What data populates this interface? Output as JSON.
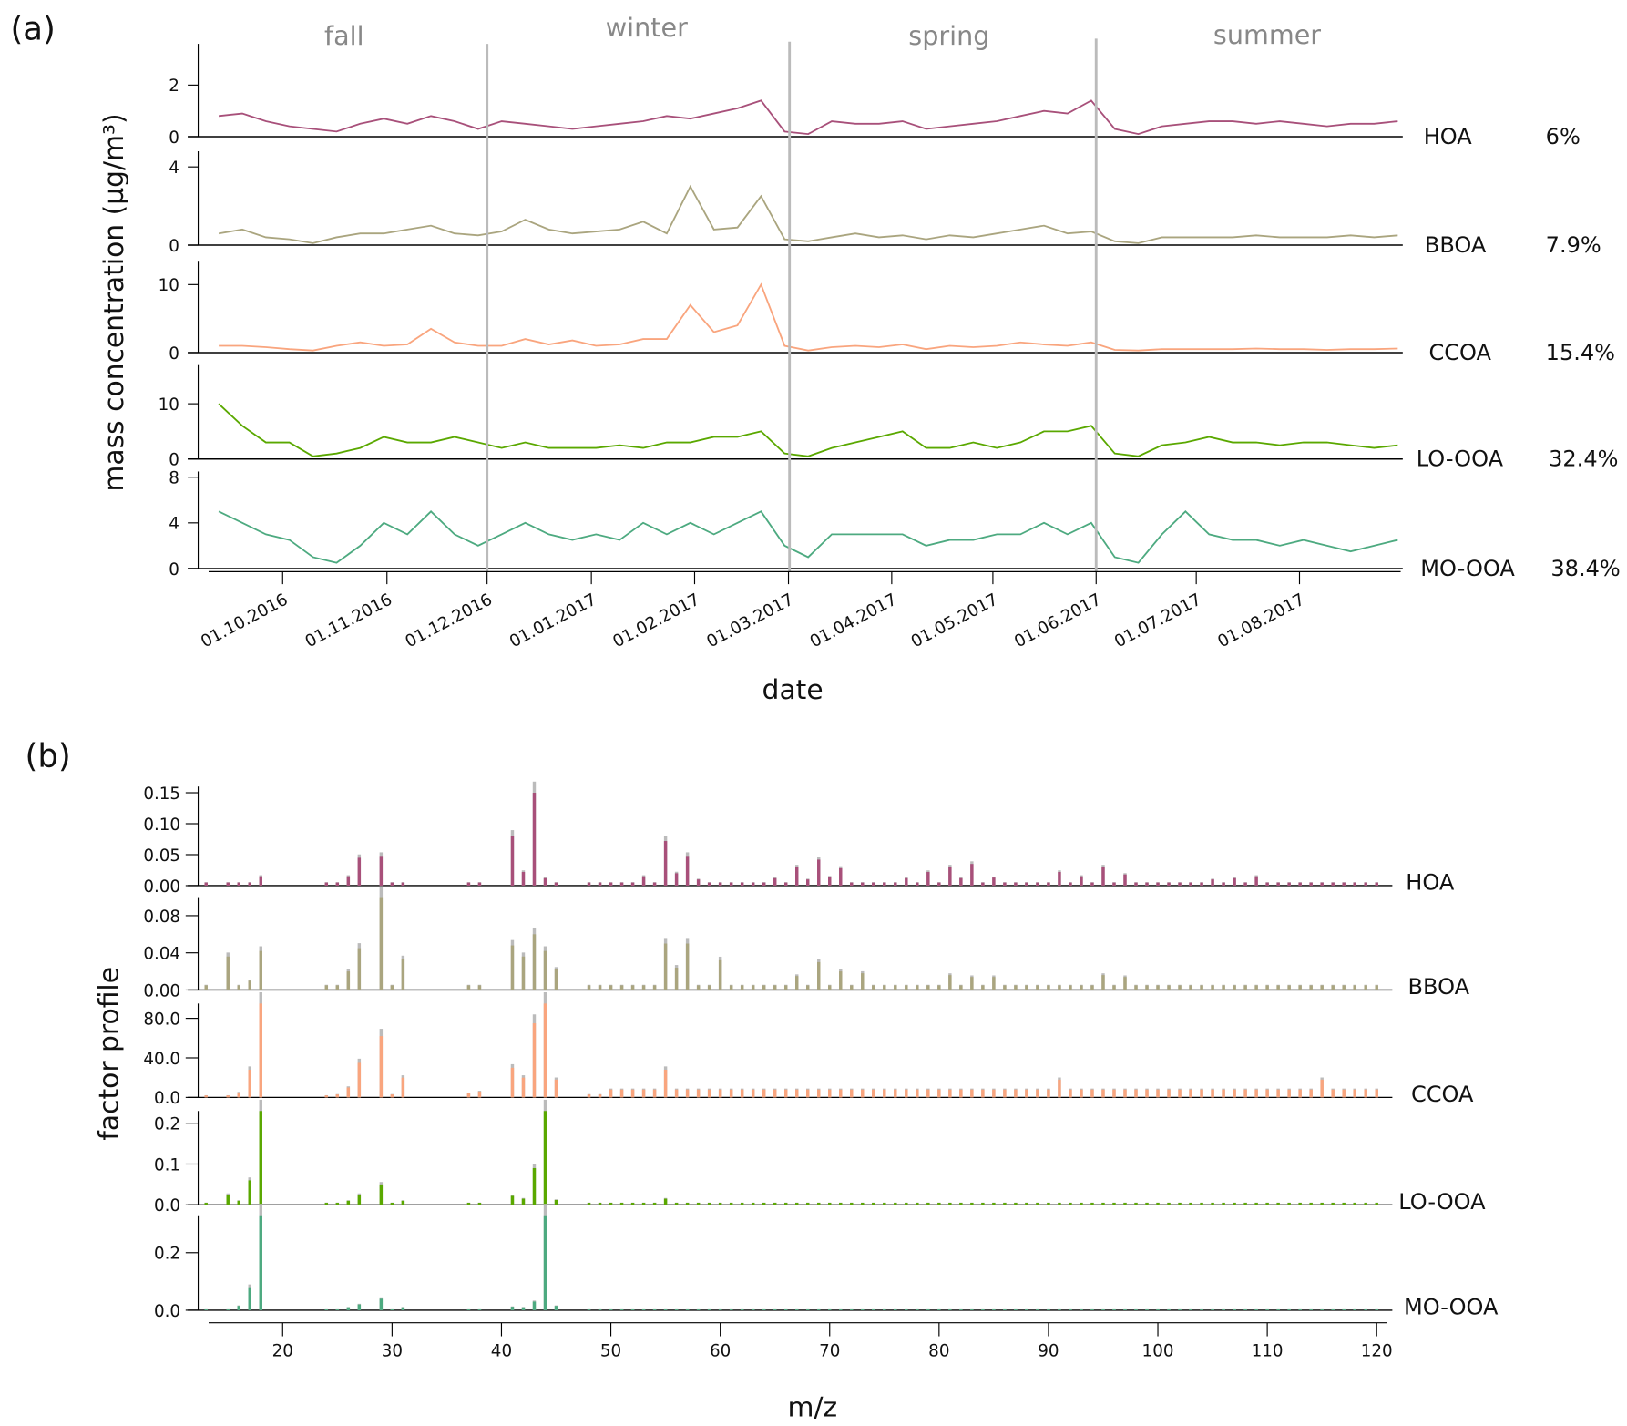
{
  "chart_data": [
    {
      "panel_label": "(a)",
      "type": "line",
      "xlabel": "date",
      "ylabel": "mass concentration (µg/m³)",
      "seasons": [
        "fall",
        "winter",
        "spring",
        "summer"
      ],
      "x_ticks": [
        "01.10.2016",
        "01.11.2016",
        "01.12.2016",
        "01.01.2017",
        "01.02.2017",
        "01.03.2017",
        "01.04.2017",
        "01.05.2017",
        "01.06.2017",
        "01.07.2017",
        "01.08.2017"
      ],
      "x_start": "2016-09-12",
      "x_step_days": 7,
      "series": [
        {
          "name": "HOA",
          "share": "6%",
          "color": "#a8507a",
          "ylim": [
            0,
            3.6
          ],
          "yticks": [
            0,
            2
          ],
          "values": [
            0.8,
            0.9,
            0.6,
            0.4,
            0.3,
            0.2,
            0.5,
            0.7,
            0.5,
            0.8,
            0.6,
            0.3,
            0.6,
            0.5,
            0.4,
            0.3,
            0.4,
            0.5,
            0.6,
            0.8,
            0.7,
            0.9,
            1.1,
            1.4,
            0.2,
            0.1,
            0.6,
            0.5,
            0.5,
            0.6,
            0.3,
            0.4,
            0.5,
            0.6,
            0.8,
            1.0,
            0.9,
            1.4,
            0.3,
            0.1,
            0.4,
            0.5,
            0.6,
            0.6,
            0.5,
            0.6,
            0.5,
            0.4,
            0.5,
            0.5,
            0.6
          ]
        },
        {
          "name": "BBOA",
          "share": "7.9%",
          "color": "#aaa57f",
          "ylim": [
            0,
            4.8
          ],
          "yticks": [
            0,
            4
          ],
          "values": [
            0.6,
            0.8,
            0.4,
            0.3,
            0.1,
            0.4,
            0.6,
            0.6,
            0.8,
            1.0,
            0.6,
            0.5,
            0.7,
            1.3,
            0.8,
            0.6,
            0.7,
            0.8,
            1.2,
            0.6,
            3.0,
            0.8,
            0.9,
            2.5,
            0.3,
            0.2,
            0.4,
            0.6,
            0.4,
            0.5,
            0.3,
            0.5,
            0.4,
            0.6,
            0.8,
            1.0,
            0.6,
            0.7,
            0.2,
            0.1,
            0.4,
            0.4,
            0.4,
            0.4,
            0.5,
            0.4,
            0.4,
            0.4,
            0.5,
            0.4,
            0.5
          ]
        },
        {
          "name": "CCOA",
          "share": "15.4%",
          "color": "#f9a57e",
          "ylim": [
            0,
            13.5
          ],
          "yticks": [
            0,
            10
          ],
          "values": [
            1,
            1,
            0.8,
            0.5,
            0.3,
            1,
            1.5,
            1,
            1.2,
            3.5,
            1.5,
            1,
            1,
            2,
            1.2,
            1.8,
            1,
            1.2,
            2,
            2,
            7,
            3,
            4,
            10,
            1,
            0.3,
            0.8,
            1,
            0.8,
            1.2,
            0.5,
            1,
            0.8,
            1,
            1.5,
            1.2,
            1,
            1.5,
            0.4,
            0.3,
            0.5,
            0.5,
            0.5,
            0.5,
            0.6,
            0.5,
            0.5,
            0.4,
            0.5,
            0.5,
            0.6
          ]
        },
        {
          "name": "LO-OOA",
          "share": "32.4%",
          "color": "#5aa800",
          "ylim": [
            0,
            17
          ],
          "yticks": [
            0,
            10
          ],
          "values": [
            10,
            6,
            3,
            3,
            0.5,
            1,
            2,
            4,
            3,
            3,
            4,
            3,
            2,
            3,
            2,
            2,
            2,
            2.5,
            2,
            3,
            3,
            4,
            4,
            5,
            1,
            0.5,
            2,
            3,
            4,
            5,
            2,
            2,
            3,
            2,
            3,
            5,
            5,
            6,
            1,
            0.5,
            2.5,
            3,
            4,
            3,
            3,
            2.5,
            3,
            3,
            2.5,
            2,
            2.5
          ]
        },
        {
          "name": "MO-OOA",
          "share": "38.4%",
          "color": "#4daa80",
          "ylim": [
            0,
            8.5
          ],
          "yticks": [
            0,
            4,
            8
          ],
          "values": [
            5,
            4,
            3,
            2.5,
            1,
            0.5,
            2,
            4,
            3,
            5,
            3,
            2,
            3,
            4,
            3,
            2.5,
            3,
            2.5,
            4,
            3,
            4,
            3,
            4,
            5,
            2,
            1,
            3,
            3,
            3,
            3,
            2,
            2.5,
            2.5,
            3,
            3,
            4,
            3,
            4,
            1,
            0.5,
            3,
            5,
            3,
            2.5,
            2.5,
            2,
            2.5,
            2,
            1.5,
            2,
            2.5
          ]
        }
      ]
    },
    {
      "panel_label": "(b)",
      "type": "bar",
      "xlabel": "m/z",
      "ylabel": "factor profile",
      "x_ticks": [
        20,
        30,
        40,
        50,
        60,
        70,
        80,
        90,
        100,
        110,
        120
      ],
      "mz": [
        13,
        15,
        16,
        17,
        18,
        24,
        25,
        26,
        27,
        29,
        30,
        31,
        37,
        38,
        41,
        42,
        43,
        44,
        45,
        48,
        49,
        50,
        51,
        52,
        53,
        54,
        55,
        56,
        57,
        58,
        59,
        60,
        61,
        62,
        63,
        64,
        65,
        66,
        67,
        68,
        69,
        70,
        71,
        72,
        73,
        74,
        75,
        76,
        77,
        78,
        79,
        80,
        81,
        82,
        83,
        84,
        85,
        86,
        87,
        88,
        89,
        90,
        91,
        92,
        93,
        94,
        95,
        96,
        97,
        98,
        99,
        100,
        101,
        102,
        103,
        104,
        105,
        106,
        107,
        108,
        109,
        110,
        111,
        112,
        113,
        114,
        115,
        116,
        117,
        118,
        119,
        120
      ],
      "series": [
        {
          "name": "HOA",
          "color": "#a8507a",
          "ylim": [
            0,
            0.16
          ],
          "yticks": [
            "0.00",
            "0.05",
            "0.10",
            "0.15"
          ],
          "default": 0.005,
          "peaks": {
            "18": 0.015,
            "26": 0.015,
            "27": 0.045,
            "29": 0.048,
            "41": 0.08,
            "42": 0.022,
            "43": 0.15,
            "44": 0.012,
            "53": 0.015,
            "55": 0.072,
            "56": 0.02,
            "57": 0.048,
            "58": 0.01,
            "65": 0.012,
            "67": 0.03,
            "68": 0.01,
            "69": 0.042,
            "70": 0.014,
            "71": 0.028,
            "77": 0.012,
            "79": 0.022,
            "81": 0.03,
            "82": 0.012,
            "83": 0.035,
            "85": 0.013,
            "91": 0.022,
            "93": 0.015,
            "95": 0.03,
            "97": 0.018,
            "105": 0.01,
            "107": 0.012,
            "109": 0.015
          }
        },
        {
          "name": "BBOA",
          "color": "#aaa57f",
          "ylim": [
            0,
            0.1
          ],
          "yticks": [
            "0.00",
            "0.04",
            "0.08"
          ],
          "default": 0.005,
          "peaks": {
            "15": 0.036,
            "18": 0.042,
            "17": 0.01,
            "26": 0.02,
            "27": 0.045,
            "29": 0.1,
            "31": 0.033,
            "41": 0.048,
            "42": 0.036,
            "43": 0.06,
            "44": 0.042,
            "45": 0.022,
            "55": 0.05,
            "56": 0.024,
            "57": 0.05,
            "60": 0.032,
            "67": 0.015,
            "69": 0.03,
            "71": 0.02,
            "73": 0.018,
            "81": 0.016,
            "83": 0.014,
            "85": 0.014,
            "95": 0.016,
            "97": 0.014
          }
        },
        {
          "name": "CCOA",
          "color": "#f9a57e",
          "ylim": [
            0,
            95
          ],
          "yticks": [
            "0.0",
            "40.0",
            "80.0"
          ],
          "default": 8,
          "peaks": {
            "13": 2,
            "15": 2,
            "16": 5,
            "17": 28,
            "18": 95,
            "24": 2,
            "25": 3,
            "26": 10,
            "27": 35,
            "29": 62,
            "30": 3,
            "31": 20,
            "37": 4,
            "38": 6,
            "41": 30,
            "42": 20,
            "43": 75,
            "44": 95,
            "45": 18,
            "48": 3,
            "49": 3,
            "55": 28,
            "91": 18,
            "115": 18
          }
        },
        {
          "name": "LO-OOA",
          "color": "#5aa800",
          "ylim": [
            0,
            0.23
          ],
          "yticks": [
            "0.0",
            "0.1",
            "0.2"
          ],
          "default": 0.005,
          "peaks": {
            "15": 0.025,
            "16": 0.01,
            "17": 0.06,
            "18": 0.23,
            "26": 0.01,
            "27": 0.025,
            "29": 0.05,
            "31": 0.01,
            "41": 0.022,
            "42": 0.015,
            "43": 0.09,
            "44": 0.23,
            "45": 0.012,
            "55": 0.015
          }
        },
        {
          "name": "MO-OOA",
          "color": "#4daa80",
          "ylim": [
            0,
            0.33
          ],
          "yticks": [
            "0.0",
            "0.2"
          ],
          "default": 0.003,
          "peaks": {
            "16": 0.015,
            "17": 0.08,
            "18": 0.33,
            "26": 0.01,
            "27": 0.02,
            "29": 0.04,
            "31": 0.01,
            "41": 0.012,
            "42": 0.01,
            "43": 0.03,
            "44": 0.33,
            "45": 0.015
          }
        }
      ]
    }
  ]
}
